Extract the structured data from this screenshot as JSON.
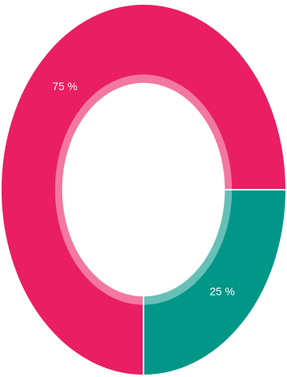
{
  "chart_data": {
    "type": "donut",
    "values": [
      75,
      25
    ],
    "value_labels": [
      "75 %",
      "25 %"
    ],
    "colors": [
      "#e91e63",
      "#009688"
    ]
  }
}
